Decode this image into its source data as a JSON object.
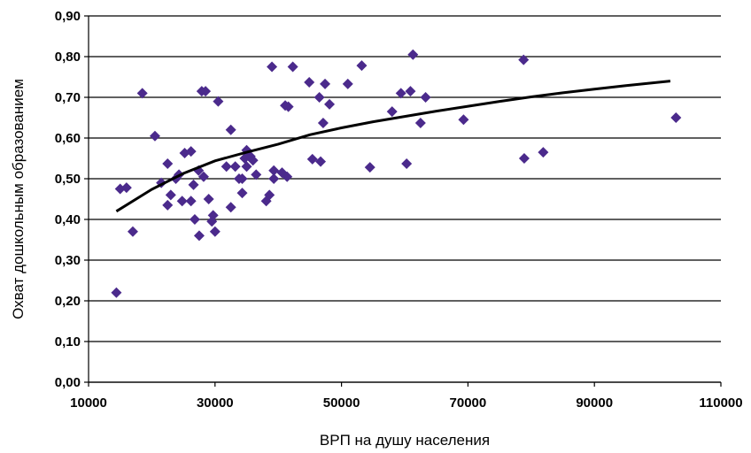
{
  "chart_data": {
    "type": "scatter",
    "xlabel": "ВРП на душу населения",
    "ylabel": "Охват дошкольным образованием",
    "xlim": [
      10000,
      110000
    ],
    "ylim": [
      0,
      0.9
    ],
    "x_ticks": [
      10000,
      30000,
      50000,
      70000,
      90000,
      110000
    ],
    "x_tick_labels": [
      "10000",
      "30000",
      "50000",
      "70000",
      "90000",
      "110000"
    ],
    "y_ticks": [
      0,
      0.1,
      0.2,
      0.3,
      0.4,
      0.5,
      0.6,
      0.7,
      0.8,
      0.9
    ],
    "y_tick_labels": [
      "0,00",
      "0,10",
      "0,20",
      "0,30",
      "0,40",
      "0,50",
      "0,60",
      "0,70",
      "0,80",
      "0,90"
    ],
    "grid": "horizontal",
    "marker": "diamond",
    "colors": {
      "points": "#4b2a8c",
      "trend": "#000000"
    },
    "points": [
      {
        "x": 14400,
        "y": 0.22
      },
      {
        "x": 15000,
        "y": 0.475
      },
      {
        "x": 16000,
        "y": 0.478
      },
      {
        "x": 17000,
        "y": 0.37
      },
      {
        "x": 18500,
        "y": 0.71
      },
      {
        "x": 20500,
        "y": 0.605
      },
      {
        "x": 21500,
        "y": 0.49
      },
      {
        "x": 22500,
        "y": 0.537
      },
      {
        "x": 22500,
        "y": 0.435
      },
      {
        "x": 23000,
        "y": 0.46
      },
      {
        "x": 23800,
        "y": 0.5
      },
      {
        "x": 24300,
        "y": 0.51
      },
      {
        "x": 24800,
        "y": 0.445
      },
      {
        "x": 25200,
        "y": 0.563
      },
      {
        "x": 26200,
        "y": 0.567
      },
      {
        "x": 26200,
        "y": 0.445
      },
      {
        "x": 26600,
        "y": 0.485
      },
      {
        "x": 26800,
        "y": 0.4
      },
      {
        "x": 27400,
        "y": 0.52
      },
      {
        "x": 27500,
        "y": 0.36
      },
      {
        "x": 27900,
        "y": 0.715
      },
      {
        "x": 28200,
        "y": 0.505
      },
      {
        "x": 28500,
        "y": 0.715
      },
      {
        "x": 29000,
        "y": 0.45
      },
      {
        "x": 29500,
        "y": 0.395
      },
      {
        "x": 29700,
        "y": 0.41
      },
      {
        "x": 30000,
        "y": 0.37
      },
      {
        "x": 30500,
        "y": 0.69
      },
      {
        "x": 31800,
        "y": 0.53
      },
      {
        "x": 32500,
        "y": 0.62
      },
      {
        "x": 32500,
        "y": 0.43
      },
      {
        "x": 33200,
        "y": 0.53
      },
      {
        "x": 33800,
        "y": 0.5
      },
      {
        "x": 34300,
        "y": 0.465
      },
      {
        "x": 34300,
        "y": 0.5
      },
      {
        "x": 34700,
        "y": 0.55
      },
      {
        "x": 35000,
        "y": 0.57
      },
      {
        "x": 35000,
        "y": 0.53
      },
      {
        "x": 35600,
        "y": 0.555
      },
      {
        "x": 36000,
        "y": 0.545
      },
      {
        "x": 36500,
        "y": 0.51
      },
      {
        "x": 38100,
        "y": 0.445
      },
      {
        "x": 38600,
        "y": 0.46
      },
      {
        "x": 39000,
        "y": 0.775
      },
      {
        "x": 39300,
        "y": 0.52
      },
      {
        "x": 39300,
        "y": 0.5
      },
      {
        "x": 40600,
        "y": 0.515
      },
      {
        "x": 41100,
        "y": 0.68
      },
      {
        "x": 41400,
        "y": 0.505
      },
      {
        "x": 41600,
        "y": 0.677
      },
      {
        "x": 42300,
        "y": 0.775
      },
      {
        "x": 44900,
        "y": 0.737
      },
      {
        "x": 45400,
        "y": 0.548
      },
      {
        "x": 46500,
        "y": 0.7
      },
      {
        "x": 46700,
        "y": 0.542
      },
      {
        "x": 47100,
        "y": 0.637
      },
      {
        "x": 47400,
        "y": 0.733
      },
      {
        "x": 48100,
        "y": 0.683
      },
      {
        "x": 51000,
        "y": 0.733
      },
      {
        "x": 53200,
        "y": 0.778
      },
      {
        "x": 54500,
        "y": 0.528
      },
      {
        "x": 58000,
        "y": 0.665
      },
      {
        "x": 59400,
        "y": 0.71
      },
      {
        "x": 60300,
        "y": 0.537
      },
      {
        "x": 60900,
        "y": 0.715
      },
      {
        "x": 61300,
        "y": 0.805
      },
      {
        "x": 62500,
        "y": 0.637
      },
      {
        "x": 63300,
        "y": 0.7
      },
      {
        "x": 69300,
        "y": 0.645
      },
      {
        "x": 78800,
        "y": 0.792
      },
      {
        "x": 78900,
        "y": 0.55
      },
      {
        "x": 81900,
        "y": 0.565
      },
      {
        "x": 102900,
        "y": 0.65
      }
    ],
    "trendline": [
      {
        "x": 14400,
        "y": 0.42
      },
      {
        "x": 20000,
        "y": 0.474
      },
      {
        "x": 25000,
        "y": 0.513
      },
      {
        "x": 30000,
        "y": 0.544
      },
      {
        "x": 35000,
        "y": 0.565
      },
      {
        "x": 40000,
        "y": 0.585
      },
      {
        "x": 45000,
        "y": 0.608
      },
      {
        "x": 50000,
        "y": 0.625
      },
      {
        "x": 55000,
        "y": 0.64
      },
      {
        "x": 60000,
        "y": 0.653
      },
      {
        "x": 65000,
        "y": 0.666
      },
      {
        "x": 70000,
        "y": 0.678
      },
      {
        "x": 75000,
        "y": 0.69
      },
      {
        "x": 80000,
        "y": 0.701
      },
      {
        "x": 85000,
        "y": 0.711
      },
      {
        "x": 90000,
        "y": 0.72
      },
      {
        "x": 95000,
        "y": 0.729
      },
      {
        "x": 102000,
        "y": 0.74
      }
    ]
  }
}
